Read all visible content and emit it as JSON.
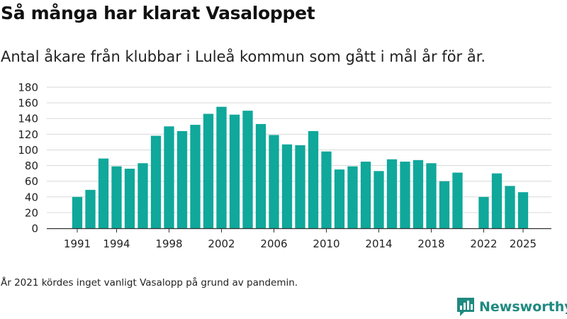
{
  "title": "Så många har klarat Vasaloppet",
  "subtitle": "Antal åkare från klubbar i Luleå kommun som gått i mål år för år.",
  "footnote": "År 2021 kördes inget vanligt Vasalopp på grund av pandemin.",
  "brand": {
    "name": "Newsworthy",
    "icon": "newsworthy-logo-icon"
  },
  "colors": {
    "bar": "#0fa89b",
    "grid": "#d9d9d9",
    "axis": "#333333",
    "brand": "#1f8a80"
  },
  "chart_data": {
    "type": "bar",
    "title": "Så många har klarat Vasaloppet",
    "x": [
      1991,
      1992,
      1993,
      1994,
      1995,
      1996,
      1997,
      1998,
      1999,
      2000,
      2001,
      2002,
      2003,
      2004,
      2005,
      2006,
      2007,
      2008,
      2009,
      2010,
      2011,
      2012,
      2013,
      2014,
      2015,
      2016,
      2017,
      2018,
      2019,
      2020,
      2021,
      2022,
      2023,
      2024,
      2025
    ],
    "values": [
      40,
      49,
      89,
      79,
      76,
      83,
      118,
      130,
      124,
      132,
      146,
      155,
      145,
      150,
      133,
      119,
      107,
      106,
      124,
      98,
      75,
      79,
      85,
      73,
      88,
      85,
      87,
      83,
      60,
      71,
      null,
      40,
      70,
      54,
      46
    ],
    "y_ticks": [
      0,
      20,
      40,
      60,
      80,
      100,
      120,
      140,
      160,
      180
    ],
    "x_tick_labels": [
      "1991",
      "1994",
      "1998",
      "2002",
      "2006",
      "2010",
      "2014",
      "2018",
      "2022",
      "2025"
    ],
    "ylim": [
      0,
      180
    ],
    "grid": true,
    "legend": "none",
    "xlabel": "",
    "ylabel": ""
  }
}
